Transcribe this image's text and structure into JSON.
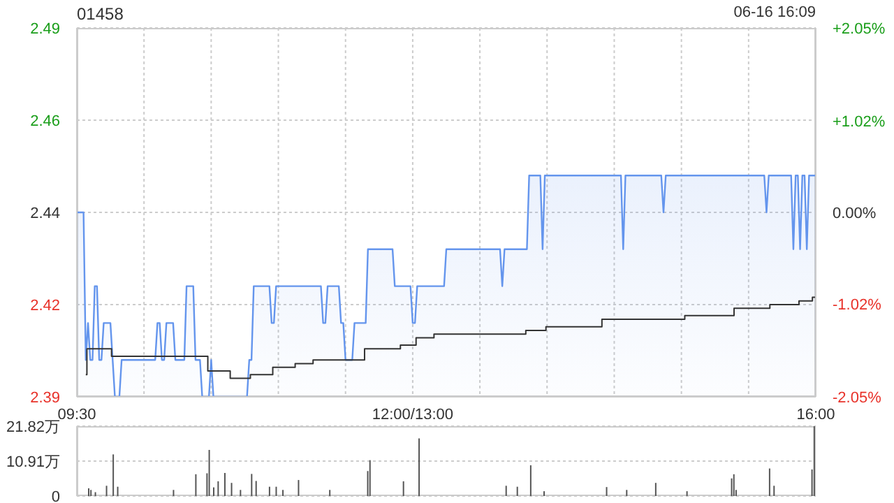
{
  "chart_data": [
    {
      "type": "area",
      "title": "01458",
      "annotations": [
        "06-16 16:09"
      ],
      "grid": true,
      "categories": [
        "09:30",
        null,
        null,
        null,
        null,
        null,
        null,
        null,
        null,
        null,
        null,
        null,
        null,
        null,
        null,
        null,
        null,
        null,
        null,
        null,
        null,
        null,
        null,
        null,
        null,
        null,
        null,
        null,
        null,
        null,
        null,
        null,
        null,
        null,
        null,
        null,
        null,
        null,
        null,
        null,
        null,
        null,
        null,
        null,
        null,
        null,
        null,
        null,
        null,
        null,
        null,
        null,
        null,
        null,
        null,
        null,
        null,
        null,
        null,
        null,
        null,
        null,
        null,
        null,
        null,
        null,
        null,
        null,
        null,
        null,
        null,
        null,
        null,
        null,
        null,
        null,
        null,
        null,
        null,
        null,
        null,
        null,
        null,
        null,
        null,
        null,
        null,
        null,
        null,
        null,
        null,
        null,
        null,
        null,
        null,
        null,
        null,
        null,
        null,
        null,
        null,
        null,
        null,
        null,
        null,
        null,
        null,
        null,
        null,
        null,
        null,
        null,
        null,
        null,
        null,
        null,
        null,
        null,
        null,
        null,
        null,
        null,
        null,
        null,
        null,
        null,
        null,
        null,
        null,
        null,
        null,
        null,
        null,
        null,
        null,
        null,
        null,
        null,
        null,
        null,
        null,
        null,
        null,
        null,
        null,
        null,
        null,
        null,
        null,
        null,
        "12:00/13:00",
        null,
        null,
        null,
        null,
        null,
        null,
        null,
        null,
        null,
        null,
        null,
        null,
        null,
        null,
        null,
        null,
        null,
        null,
        null,
        null,
        null,
        null,
        null,
        null,
        null,
        null,
        null,
        null,
        null,
        null,
        null,
        null,
        null,
        null,
        null,
        null,
        null,
        null,
        null,
        null,
        null,
        null,
        null,
        null,
        null,
        null,
        null,
        null,
        null,
        null,
        null,
        null,
        null,
        null,
        null,
        null,
        null,
        null,
        null,
        null,
        null,
        null,
        null,
        null,
        null,
        null,
        null,
        null,
        null,
        null,
        null,
        null,
        null,
        null,
        null,
        null,
        null,
        null,
        null,
        null,
        null,
        null,
        null,
        null,
        null,
        null,
        null,
        null,
        null,
        null,
        null,
        null,
        null,
        null,
        null,
        null,
        null,
        null,
        null,
        null,
        null,
        null,
        null,
        null,
        null,
        null,
        null,
        null,
        null,
        null,
        null,
        null,
        null,
        null,
        null,
        null,
        null,
        null,
        null,
        null,
        null,
        null,
        null,
        null,
        null,
        null,
        null,
        null,
        null,
        null,
        null,
        null,
        null,
        null,
        null,
        null,
        null,
        null,
        null,
        null,
        null,
        null,
        null,
        null,
        null,
        null,
        null,
        null,
        null,
        null,
        null,
        null,
        null,
        null,
        null,
        null,
        null,
        null,
        null,
        null,
        null,
        null,
        null,
        null,
        null,
        null,
        null,
        null,
        null,
        null,
        null,
        null,
        null,
        null,
        null,
        null,
        null,
        null,
        null,
        "16:00"
      ],
      "ylim": [
        2.39,
        2.49
      ],
      "yticks": [
        2.39,
        {
          "value": 2.415,
          "label": "2.42"
        },
        2.44,
        {
          "value": 2.465,
          "label": "2.46"
        },
        2.49
      ],
      "y2lim": [
        -2.05,
        2.05
      ],
      "y2ticks": [
        {
          "value": -2.05,
          "label": "-2.05%"
        },
        {
          "value": -1.02,
          "label": "-1.02%"
        },
        {
          "value": 0,
          "label": "0.00%"
        },
        {
          "value": 1.02,
          "label": "+1.02%"
        },
        {
          "value": 2.05,
          "label": "+2.05%"
        }
      ],
      "series": [
        {
          "color": "#6495ed",
          "values": [
            2.44,
            2.44,
            2.44,
            2.44,
            2.4,
            2.41,
            2.4,
            2.4,
            2.42,
            2.42,
            2.4,
            2.4,
            2.41,
            2.41,
            2.41,
            2.41,
            2.4,
            2.39,
            2.39,
            2.39,
            2.4,
            2.4,
            2.4,
            2.4,
            2.4,
            2.4,
            2.4,
            2.4,
            2.4,
            2.4,
            2.4,
            2.4,
            2.4,
            2.4,
            2.4,
            2.4,
            2.41,
            2.41,
            2.4,
            2.4,
            2.41,
            2.41,
            2.41,
            2.41,
            2.4,
            2.4,
            2.4,
            2.4,
            2.4,
            2.42,
            2.42,
            2.42,
            2.42,
            2.4,
            2.4,
            2.4,
            2.39,
            2.39,
            2.39,
            2.39,
            2.4,
            2.39,
            2.39,
            2.39,
            2.39,
            2.39,
            2.39,
            2.39,
            2.39,
            2.39,
            2.39,
            2.39,
            2.39,
            2.39,
            2.39,
            2.39,
            2.39,
            2.4,
            2.4,
            2.42,
            2.42,
            2.42,
            2.42,
            2.42,
            2.42,
            2.42,
            2.42,
            2.41,
            2.41,
            2.42,
            2.42,
            2.42,
            2.42,
            2.42,
            2.42,
            2.42,
            2.42,
            2.42,
            2.42,
            2.42,
            2.42,
            2.42,
            2.42,
            2.42,
            2.42,
            2.42,
            2.42,
            2.42,
            2.42,
            2.42,
            2.41,
            2.41,
            2.42,
            2.42,
            2.42,
            2.42,
            2.42,
            2.42,
            2.41,
            2.41,
            2.4,
            2.4,
            2.4,
            2.4,
            2.41,
            2.41,
            2.41,
            2.41,
            2.41,
            2.41,
            2.43,
            2.43,
            2.43,
            2.43,
            2.43,
            2.43,
            2.43,
            2.43,
            2.43,
            2.43,
            2.43,
            2.43,
            2.42,
            2.42,
            2.42,
            2.42,
            2.42,
            2.42,
            2.42,
            2.42,
            2.41,
            2.41,
            2.42,
            2.42,
            2.42,
            2.42,
            2.42,
            2.42,
            2.42,
            2.42,
            2.42,
            2.42,
            2.42,
            2.42,
            2.42,
            2.43,
            2.43,
            2.43,
            2.43,
            2.43,
            2.43,
            2.43,
            2.43,
            2.43,
            2.43,
            2.43,
            2.43,
            2.43,
            2.43,
            2.43,
            2.43,
            2.43,
            2.43,
            2.43,
            2.43,
            2.43,
            2.43,
            2.43,
            2.43,
            2.43,
            2.42,
            2.43,
            2.43,
            2.43,
            2.43,
            2.43,
            2.43,
            2.43,
            2.43,
            2.43,
            2.43,
            2.43,
            2.45,
            2.45,
            2.45,
            2.45,
            2.45,
            2.45,
            2.43,
            2.45,
            2.45,
            2.45,
            2.45,
            2.45,
            2.45,
            2.45,
            2.45,
            2.45,
            2.45,
            2.45,
            2.45,
            2.45,
            2.45,
            2.45,
            2.45,
            2.45,
            2.45,
            2.45,
            2.45,
            2.45,
            2.45,
            2.45,
            2.45,
            2.45,
            2.45,
            2.45,
            2.45,
            2.45,
            2.45,
            2.45,
            2.45,
            2.45,
            2.45,
            2.45,
            2.43,
            2.45,
            2.45,
            2.45,
            2.45,
            2.45,
            2.45,
            2.45,
            2.45,
            2.45,
            2.45,
            2.45,
            2.45,
            2.45,
            2.45,
            2.45,
            2.45,
            2.45,
            2.44,
            2.45,
            2.45,
            2.45,
            2.45,
            2.45,
            2.45,
            2.45,
            2.45,
            2.45,
            2.45,
            2.45,
            2.45,
            2.45,
            2.45,
            2.45,
            2.45,
            2.45,
            2.45,
            2.45,
            2.45,
            2.45,
            2.45,
            2.45,
            2.45,
            2.45,
            2.45,
            2.45,
            2.45,
            2.45,
            2.45,
            2.45,
            2.45,
            2.45,
            2.45,
            2.45,
            2.45,
            2.45,
            2.45,
            2.45,
            2.45,
            2.45,
            2.45,
            2.45,
            2.45,
            2.45,
            2.44,
            2.45,
            2.45,
            2.45,
            2.45,
            2.45,
            2.45,
            2.45,
            2.45,
            2.45,
            2.45,
            2.45,
            2.43,
            2.45,
            2.45,
            2.43,
            2.45,
            2.45,
            2.43,
            2.45,
            2.45,
            2.45,
            2.45
          ]
        },
        {
          "type": "step",
          "color": "#333333",
          "values": [
            null,
            null,
            null,
            null,
            2.396,
            2.403,
            2.403,
            2.403,
            2.403,
            2.403,
            2.403,
            2.403,
            2.403,
            2.403,
            2.403,
            2.403,
            2.401,
            2.401,
            2.401,
            2.401,
            2.401,
            2.401,
            2.401,
            2.401,
            2.401,
            2.401,
            2.401,
            2.401,
            2.401,
            2.401,
            2.401,
            2.401,
            2.401,
            2.401,
            2.401,
            2.401,
            2.401,
            2.401,
            2.401,
            2.401,
            2.401,
            2.401,
            2.401,
            2.401,
            2.401,
            2.401,
            2.401,
            2.401,
            2.401,
            2.401,
            2.401,
            2.401,
            2.401,
            2.401,
            2.401,
            2.401,
            2.401,
            2.401,
            2.401,
            2.397,
            2.397,
            2.397,
            2.397,
            2.397,
            2.397,
            2.397,
            2.397,
            2.397,
            2.397,
            2.395,
            2.395,
            2.395,
            2.395,
            2.395,
            2.395,
            2.395,
            2.395,
            2.395,
            2.396,
            2.396,
            2.396,
            2.396,
            2.396,
            2.396,
            2.396,
            2.396,
            2.396,
            2.396,
            2.398,
            2.398,
            2.398,
            2.398,
            2.398,
            2.398,
            2.398,
            2.398,
            2.398,
            2.398,
            2.399,
            2.399,
            2.399,
            2.399,
            2.399,
            2.399,
            2.399,
            2.399,
            2.4,
            2.4,
            2.4,
            2.4,
            2.4,
            2.4,
            2.4,
            2.4,
            2.4,
            2.4,
            2.4,
            2.4,
            2.4,
            2.4,
            2.4,
            2.4,
            2.4,
            2.4,
            2.4,
            2.4,
            2.4,
            2.4,
            2.4,
            2.403,
            2.403,
            2.403,
            2.403,
            2.403,
            2.403,
            2.403,
            2.403,
            2.403,
            2.403,
            2.403,
            2.403,
            2.403,
            2.403,
            2.403,
            2.403,
            2.404,
            2.404,
            2.404,
            2.404,
            2.404,
            2.404,
            2.404,
            2.406,
            2.406,
            2.406,
            2.406,
            2.406,
            2.406,
            2.406,
            2.406,
            2.407,
            2.407,
            2.407,
            2.407,
            2.407,
            2.407,
            2.407,
            2.407,
            2.407,
            2.407,
            2.407,
            2.407,
            2.407,
            2.407,
            2.407,
            2.407,
            2.407,
            2.407,
            2.407,
            2.407,
            2.407,
            2.407,
            2.407,
            2.407,
            2.407,
            2.407,
            2.407,
            2.407,
            2.407,
            2.407,
            2.407,
            2.407,
            2.407,
            2.407,
            2.407,
            2.407,
            2.407,
            2.407,
            2.407,
            2.407,
            2.407,
            2.408,
            2.408,
            2.408,
            2.408,
            2.408,
            2.408,
            2.408,
            2.408,
            2.408,
            2.409,
            2.409,
            2.409,
            2.409,
            2.409,
            2.409,
            2.409,
            2.409,
            2.409,
            2.409,
            2.409,
            2.409,
            2.409,
            2.409,
            2.409,
            2.409,
            2.409,
            2.409,
            2.409,
            2.409,
            2.409,
            2.409,
            2.409,
            2.409,
            2.409,
            2.411,
            2.411,
            2.411,
            2.411,
            2.411,
            2.411,
            2.411,
            2.411,
            2.411,
            2.411,
            2.411,
            2.411,
            2.411,
            2.411,
            2.411,
            2.411,
            2.411,
            2.411,
            2.411,
            2.411,
            2.411,
            2.411,
            2.411,
            2.411,
            2.411,
            2.411,
            2.411,
            2.411,
            2.411,
            2.411,
            2.411,
            2.411,
            2.411,
            2.411,
            2.411,
            2.411,
            2.411,
            2.412,
            2.412,
            2.412,
            2.412,
            2.412,
            2.412,
            2.412,
            2.412,
            2.412,
            2.412,
            2.412,
            2.412,
            2.412,
            2.412,
            2.412,
            2.412,
            2.412,
            2.412,
            2.412,
            2.412,
            2.412,
            2.412,
            2.414,
            2.414,
            2.414,
            2.414,
            2.414,
            2.414,
            2.414,
            2.414,
            2.414,
            2.414,
            2.414,
            2.414,
            2.414,
            2.414,
            2.414,
            2.414,
            2.415,
            2.415,
            2.415,
            2.415,
            2.415,
            2.415,
            2.415,
            2.415,
            2.415,
            2.415,
            2.415,
            2.415,
            2.415,
            2.416,
            2.416,
            2.416,
            2.416,
            2.416,
            2.416,
            2.417,
            2.417
          ]
        }
      ]
    },
    {
      "type": "bar",
      "grid": "y",
      "tick_labels": "y",
      "color": "#555555",
      "categories": [
        null,
        null,
        null,
        null,
        null,
        null,
        null,
        null,
        null,
        null,
        null,
        null,
        null,
        null,
        null,
        null,
        null,
        null,
        null,
        null,
        null,
        null,
        null,
        null,
        null,
        null,
        null,
        null,
        null,
        null,
        null,
        null,
        null,
        null,
        null,
        null,
        null,
        null,
        null,
        null,
        null,
        null,
        null,
        null,
        null,
        null,
        null,
        null,
        null,
        null,
        null,
        null,
        null,
        null,
        null,
        null,
        null,
        null,
        null,
        null,
        null,
        null,
        null,
        null,
        null,
        null,
        null,
        null,
        null,
        null,
        null,
        null,
        null,
        null,
        null,
        null,
        null,
        null,
        null,
        null,
        null,
        null,
        null,
        null,
        null,
        null,
        null,
        null,
        null,
        null,
        null,
        null,
        null,
        null,
        null,
        null,
        null,
        null,
        null,
        null,
        null,
        null,
        null,
        null,
        null,
        null,
        null,
        null,
        null,
        null,
        null,
        null,
        null,
        null,
        null,
        null,
        null,
        null,
        null,
        null,
        null,
        null,
        null,
        null,
        null,
        null,
        null,
        null,
        null,
        null,
        null,
        null,
        null,
        null,
        null,
        null,
        null,
        null,
        null,
        null,
        null,
        null,
        null,
        null,
        null,
        null,
        null,
        null,
        null,
        null,
        null,
        null,
        null,
        null,
        null,
        null,
        null,
        null,
        null,
        null,
        null,
        null,
        null,
        null,
        null,
        null,
        null,
        null,
        null,
        null,
        null,
        null,
        null,
        null,
        null,
        null,
        null,
        null,
        null,
        null,
        null,
        null,
        null,
        null,
        null,
        null,
        null,
        null,
        null,
        null,
        null,
        null,
        null,
        null,
        null,
        null,
        null,
        null,
        null,
        null,
        null,
        null,
        null,
        null,
        null,
        null,
        null,
        null,
        null,
        null,
        null,
        null,
        null,
        null,
        null,
        null,
        null,
        null,
        null,
        null,
        null,
        null,
        null,
        null,
        null,
        null,
        null,
        null,
        null,
        null,
        null,
        null,
        null,
        null,
        null,
        null,
        null,
        null,
        null,
        null,
        null,
        null,
        null,
        null,
        null,
        null,
        null,
        null,
        null,
        null,
        null,
        null,
        null,
        null,
        null,
        null,
        null,
        null,
        null,
        null,
        null,
        null,
        null,
        null,
        null,
        null,
        null,
        null,
        null,
        null,
        null,
        null,
        null,
        null,
        null,
        null,
        null,
        null,
        null,
        null,
        null,
        null,
        null,
        null,
        null,
        null,
        null,
        null,
        null,
        null,
        null,
        null,
        null,
        null,
        null,
        null,
        null,
        null,
        null,
        null,
        null,
        null,
        null,
        null,
        null,
        null,
        null,
        null,
        null,
        null,
        null,
        null,
        null,
        null,
        null,
        null,
        null,
        null,
        null,
        null,
        null,
        null,
        null,
        null,
        null,
        null,
        null,
        null,
        null,
        null,
        null
      ],
      "ylim": [
        0,
        21.82
      ],
      "yticks": [
        0,
        {
          "value": 10.91,
          "label": "10.91万"
        },
        {
          "value": 21.82,
          "label": "21.82万"
        }
      ],
      "values": [
        0,
        0,
        0,
        0,
        0,
        2.4,
        1.9,
        0,
        1.2,
        0,
        0,
        0,
        0,
        3.2,
        0,
        0,
        13.0,
        0,
        2.9,
        0,
        0,
        0,
        0,
        0,
        0,
        0,
        0,
        0,
        0,
        0,
        0,
        0,
        0,
        0,
        0,
        0,
        0,
        0,
        0,
        0,
        0,
        0,
        0,
        1.9,
        0,
        0,
        0,
        0,
        0,
        0,
        0,
        0,
        0,
        6.8,
        0,
        0,
        0,
        0,
        7.1,
        14.4,
        0,
        2.7,
        0,
        4.6,
        0,
        0,
        7.2,
        0,
        0,
        4.1,
        0,
        0,
        0,
        1.9,
        0,
        0,
        0,
        0,
        6.9,
        0,
        4.7,
        0,
        0,
        0,
        0,
        0,
        2.9,
        0,
        0,
        2.9,
        0,
        0,
        1.9,
        0,
        0,
        0,
        0,
        0,
        0,
        5.0,
        0,
        0,
        0,
        0,
        0,
        0,
        0,
        0,
        0,
        0,
        0,
        0,
        0,
        1.9,
        0,
        0,
        0,
        0,
        0,
        0,
        0,
        0,
        0,
        0,
        0,
        0,
        0,
        0,
        0,
        0,
        7.8,
        11.2,
        0,
        0,
        0,
        0,
        0,
        0,
        0,
        0,
        0,
        0,
        0,
        0,
        0,
        0,
        4.6,
        0,
        0,
        0,
        0,
        0,
        0,
        18.0,
        0,
        0,
        0,
        0,
        0,
        0,
        0,
        0,
        0,
        0,
        0,
        0,
        0,
        0,
        0,
        0,
        0,
        0,
        0,
        0,
        0,
        0,
        0,
        0,
        0,
        0,
        0,
        0,
        0,
        0,
        0,
        0,
        0,
        0,
        0,
        0,
        0,
        0,
        3.2,
        0,
        0,
        0,
        0,
        2.9,
        0,
        0,
        0,
        0,
        0,
        9.6,
        0,
        0,
        0,
        0,
        0,
        1.5,
        0,
        0,
        0,
        0,
        0,
        0,
        0,
        0,
        0,
        0,
        0,
        0,
        0,
        0,
        0,
        0,
        0,
        0,
        0,
        0,
        0,
        0,
        0,
        0,
        0,
        0,
        0,
        2.8,
        0,
        0,
        0,
        0,
        0,
        0,
        0,
        0,
        1.9,
        0,
        0,
        0,
        0,
        0,
        0,
        0,
        0,
        0,
        0,
        0,
        0,
        4.1,
        0,
        0,
        0,
        0,
        0,
        0,
        0,
        0,
        0,
        0,
        0,
        0,
        0,
        1.5,
        0,
        0,
        0,
        0,
        0,
        0,
        0,
        0,
        0,
        0,
        0,
        0,
        0,
        0,
        0,
        0,
        0,
        0,
        0,
        5.5,
        6.8,
        1.9,
        0,
        0,
        0,
        0,
        0,
        0,
        0,
        0,
        0,
        0,
        0,
        0,
        0,
        0,
        8.6,
        0,
        3.2,
        0,
        0,
        0,
        0,
        0,
        0,
        0,
        0,
        0,
        0,
        0,
        0,
        0,
        0,
        0,
        0,
        8.3,
        21.8
      ]
    }
  ]
}
